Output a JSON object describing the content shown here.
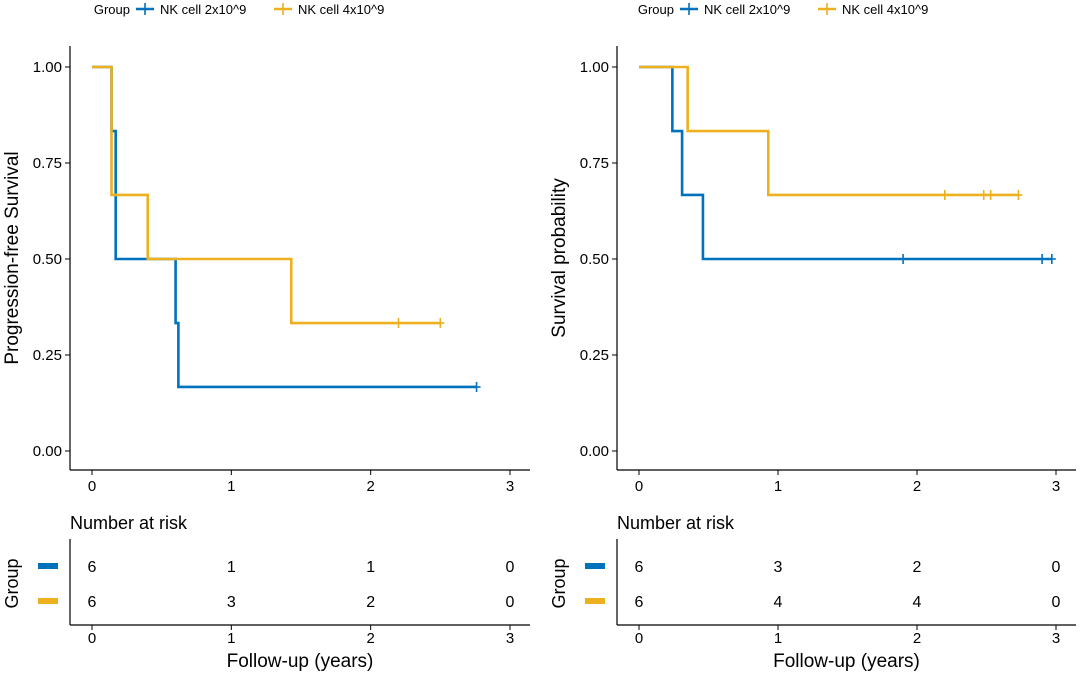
{
  "colors": {
    "series_1": "#0072BD",
    "series_2": "#EDB120",
    "axis": "#000000"
  },
  "chart_data": [
    {
      "type": "line",
      "subtype": "kaplan-meier step",
      "legend": {
        "title": "Group",
        "position": "top",
        "entries": [
          "NK cell 2x10^9",
          "NK cell 4x10^9"
        ]
      },
      "xlabel": "",
      "ylabel": "Progression-free Survival",
      "xlim": [
        0,
        3
      ],
      "ylim": [
        0,
        1
      ],
      "xticks": [
        "0",
        "1",
        "2",
        "3"
      ],
      "yticks": [
        "0.00",
        "0.25",
        "0.50",
        "0.75",
        "1.00"
      ],
      "grid": false,
      "series": [
        {
          "name": "NK cell 2x10^9",
          "steps": [
            [
              0,
              1.0
            ],
            [
              0.14,
              0.8333
            ],
            [
              0.17,
              0.5
            ],
            [
              0.6,
              0.3333
            ],
            [
              0.62,
              0.1667
            ],
            [
              2.76,
              0.1667
            ]
          ],
          "censored": [
            [
              2.76,
              0.1667
            ]
          ]
        },
        {
          "name": "NK cell 4x10^9",
          "steps": [
            [
              0,
              1.0
            ],
            [
              0.14,
              0.6667
            ],
            [
              0.4,
              0.5
            ],
            [
              1.43,
              0.3333
            ],
            [
              2.5,
              0.3333
            ]
          ],
          "censored": [
            [
              2.2,
              0.3333
            ],
            [
              2.5,
              0.3333
            ]
          ]
        }
      ],
      "risk_table": {
        "title": "Number at risk",
        "ylabel": "Group",
        "xlabel": "Follow-up (years)",
        "times": [
          "0",
          "1",
          "2",
          "3"
        ],
        "rows": [
          {
            "name": "NK cell 2x10^9",
            "values": [
              "6",
              "1",
              "1",
              "0"
            ]
          },
          {
            "name": "NK cell 4x10^9",
            "values": [
              "6",
              "3",
              "2",
              "0"
            ]
          }
        ]
      }
    },
    {
      "type": "line",
      "subtype": "kaplan-meier step",
      "legend": {
        "title": "Group",
        "position": "top",
        "entries": [
          "NK cell 2x10^9",
          "NK cell 4x10^9"
        ]
      },
      "xlabel": "",
      "ylabel": "Survival probability",
      "xlim": [
        0,
        3
      ],
      "ylim": [
        0,
        1
      ],
      "xticks": [
        "0",
        "1",
        "2",
        "3"
      ],
      "yticks": [
        "0.00",
        "0.25",
        "0.50",
        "0.75",
        "1.00"
      ],
      "grid": false,
      "series": [
        {
          "name": "NK cell 2x10^9",
          "steps": [
            [
              0,
              1.0
            ],
            [
              0.24,
              0.8333
            ],
            [
              0.31,
              0.6667
            ],
            [
              0.46,
              0.5
            ],
            [
              2.97,
              0.5
            ]
          ],
          "censored": [
            [
              1.9,
              0.5
            ],
            [
              2.9,
              0.5
            ],
            [
              2.97,
              0.5
            ]
          ]
        },
        {
          "name": "NK cell 4x10^9",
          "steps": [
            [
              0,
              1.0
            ],
            [
              0.35,
              0.8333
            ],
            [
              0.93,
              0.6667
            ],
            [
              2.73,
              0.6667
            ]
          ],
          "censored": [
            [
              2.2,
              0.6667
            ],
            [
              2.48,
              0.6667
            ],
            [
              2.53,
              0.6667
            ],
            [
              2.73,
              0.6667
            ]
          ]
        }
      ],
      "risk_table": {
        "title": "Number at risk",
        "ylabel": "Group",
        "xlabel": "Follow-up (years)",
        "times": [
          "0",
          "1",
          "2",
          "3"
        ],
        "rows": [
          {
            "name": "NK cell 2x10^9",
            "values": [
              "6",
              "3",
              "2",
              "0"
            ]
          },
          {
            "name": "NK cell 4x10^9",
            "values": [
              "6",
              "4",
              "4",
              "0"
            ]
          }
        ]
      }
    }
  ]
}
